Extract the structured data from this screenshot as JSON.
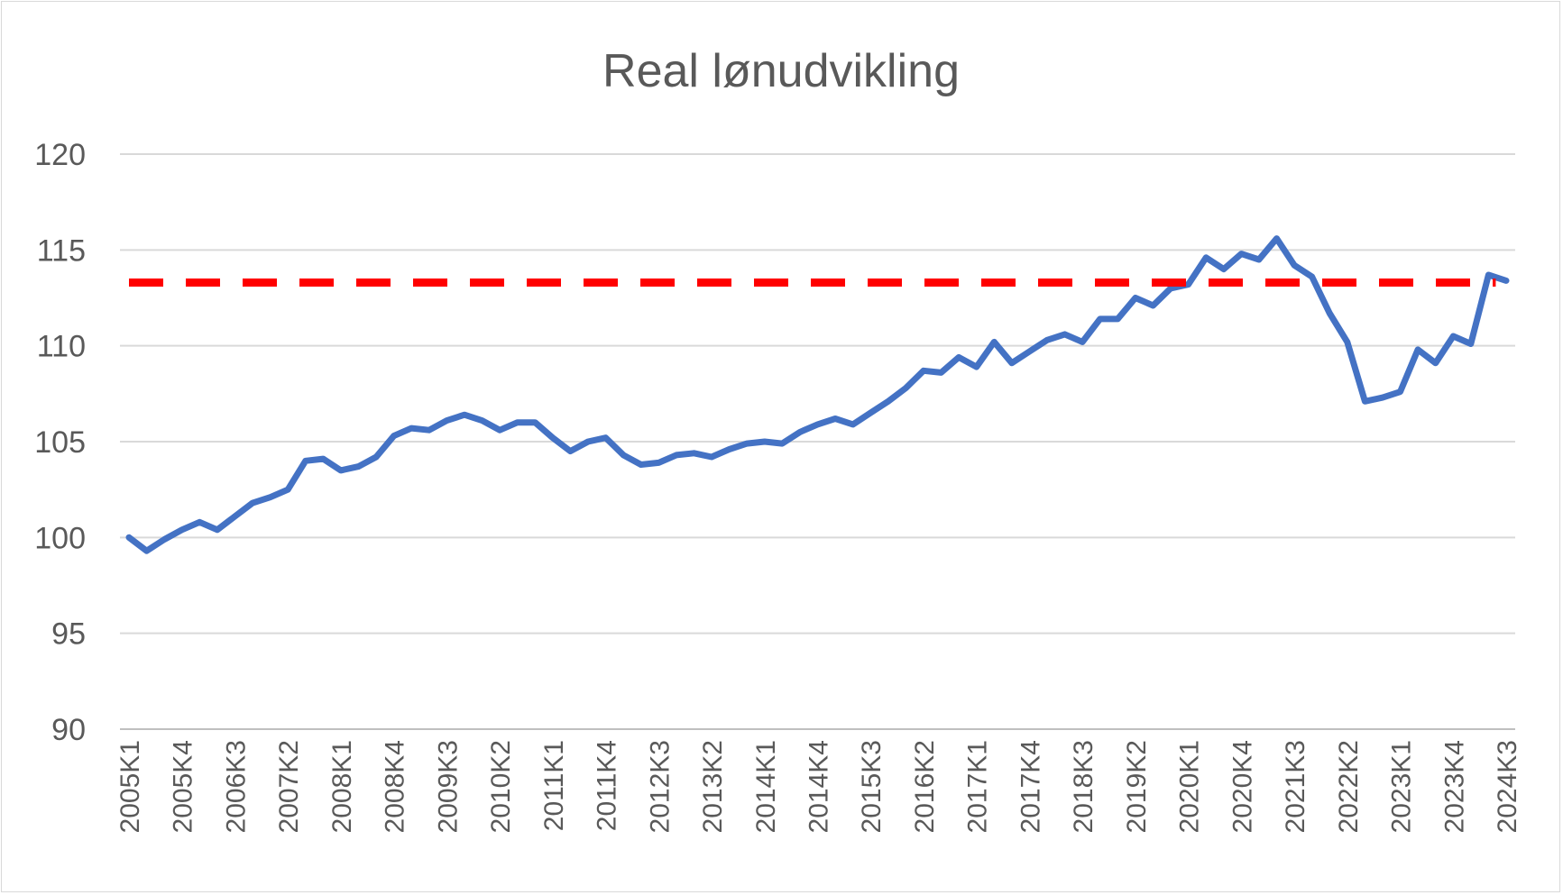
{
  "chart_data": {
    "type": "line",
    "title": "Real lønudvikling",
    "xlabel": "",
    "ylabel": "",
    "ylim": [
      90,
      120
    ],
    "yticks": [
      90,
      95,
      100,
      105,
      110,
      115,
      120
    ],
    "grid": true,
    "x_tick_labels": [
      "2005K1",
      "2005K4",
      "2006K3",
      "2007K2",
      "2008K1",
      "2008K4",
      "2009K3",
      "2010K2",
      "2011K1",
      "2011K4",
      "2012K3",
      "2013K2",
      "2014K1",
      "2014K4",
      "2015K3",
      "2016K2",
      "2017K1",
      "2017K4",
      "2018K3",
      "2019K2",
      "2020K1",
      "2020K4",
      "2021K3",
      "2022K2",
      "2023K1",
      "2023K4",
      "2024K3"
    ],
    "x": [
      "2005K1",
      "2005K2",
      "2005K3",
      "2005K4",
      "2006K1",
      "2006K2",
      "2006K3",
      "2006K4",
      "2007K1",
      "2007K2",
      "2007K3",
      "2007K4",
      "2008K1",
      "2008K2",
      "2008K3",
      "2008K4",
      "2009K1",
      "2009K2",
      "2009K3",
      "2009K4",
      "2010K1",
      "2010K2",
      "2010K3",
      "2010K4",
      "2011K1",
      "2011K2",
      "2011K3",
      "2011K4",
      "2012K1",
      "2012K2",
      "2012K3",
      "2012K4",
      "2013K1",
      "2013K2",
      "2013K3",
      "2013K4",
      "2014K1",
      "2014K2",
      "2014K3",
      "2014K4",
      "2015K1",
      "2015K2",
      "2015K3",
      "2015K4",
      "2016K1",
      "2016K2",
      "2016K3",
      "2016K4",
      "2017K1",
      "2017K2",
      "2017K3",
      "2017K4",
      "2018K1",
      "2018K2",
      "2018K3",
      "2018K4",
      "2019K1",
      "2019K2",
      "2019K3",
      "2019K4",
      "2020K1",
      "2020K2",
      "2020K3",
      "2020K4",
      "2021K1",
      "2021K2",
      "2021K3",
      "2021K4",
      "2022K1",
      "2022K2",
      "2022K3",
      "2022K4",
      "2023K1",
      "2023K2",
      "2023K3",
      "2023K4",
      "2024K1",
      "2024K2",
      "2024K3"
    ],
    "series": [
      {
        "color": "#4472c4",
        "values": [
          100.0,
          99.3,
          99.9,
          100.4,
          100.8,
          100.4,
          101.1,
          101.8,
          102.1,
          102.5,
          104.0,
          104.1,
          103.5,
          103.7,
          104.2,
          105.3,
          105.7,
          105.6,
          106.1,
          106.4,
          106.1,
          105.6,
          106.0,
          106.0,
          105.2,
          104.5,
          105.0,
          105.2,
          104.3,
          103.8,
          103.9,
          104.3,
          104.4,
          104.2,
          104.6,
          104.9,
          105.0,
          104.9,
          105.5,
          105.9,
          106.2,
          105.9,
          106.5,
          107.1,
          107.8,
          108.7,
          108.6,
          109.4,
          108.9,
          110.2,
          109.1,
          109.7,
          110.3,
          110.6,
          110.2,
          111.4,
          111.4,
          112.5,
          112.1,
          113.0,
          113.2,
          114.6,
          114.0,
          114.8,
          114.5,
          115.6,
          114.2,
          113.6,
          111.7,
          110.2,
          107.1,
          107.3,
          107.6,
          109.8,
          109.1,
          110.5,
          110.1,
          113.7,
          113.4
        ]
      },
      {
        "type": "reference-line",
        "style": "dashed",
        "color": "#ff0000",
        "value": 113.3
      }
    ]
  }
}
